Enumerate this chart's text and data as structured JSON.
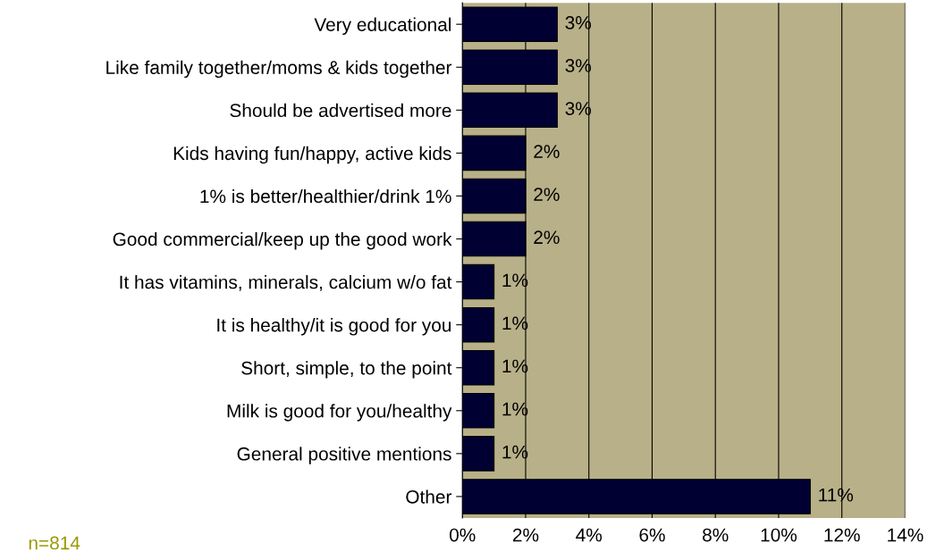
{
  "chart_data": {
    "type": "bar",
    "orientation": "horizontal",
    "categories": [
      "Very educational",
      "Like family together/moms & kids together",
      "Should be advertised more",
      "Kids having fun/happy, active kids",
      "1% is better/healthier/drink 1%",
      "Good commercial/keep up the good work",
      "It has vitamins, minerals, calcium w/o fat",
      "It is healthy/it is good for you",
      "Short, simple, to the point",
      "Milk is good for you/healthy",
      "General positive mentions",
      "Other"
    ],
    "values": [
      3,
      3,
      3,
      2,
      2,
      2,
      1,
      1,
      1,
      1,
      1,
      11
    ],
    "value_labels": [
      "3%",
      "3%",
      "3%",
      "2%",
      "2%",
      "2%",
      "1%",
      "1%",
      "1%",
      "1%",
      "1%",
      "11%"
    ],
    "color": "#000033",
    "xlim": [
      0,
      14
    ],
    "xticks": [
      {
        "value": 0,
        "label": "0%"
      },
      {
        "value": 2,
        "label": "2%"
      },
      {
        "value": 4,
        "label": "4%"
      },
      {
        "value": 6,
        "label": "6%"
      },
      {
        "value": 8,
        "label": "8%"
      },
      {
        "value": 10,
        "label": "10%"
      },
      {
        "value": 12,
        "label": "12%"
      },
      {
        "value": 14,
        "label": "14%"
      }
    ],
    "grid": "x",
    "annotations": [
      "n=814"
    ]
  }
}
